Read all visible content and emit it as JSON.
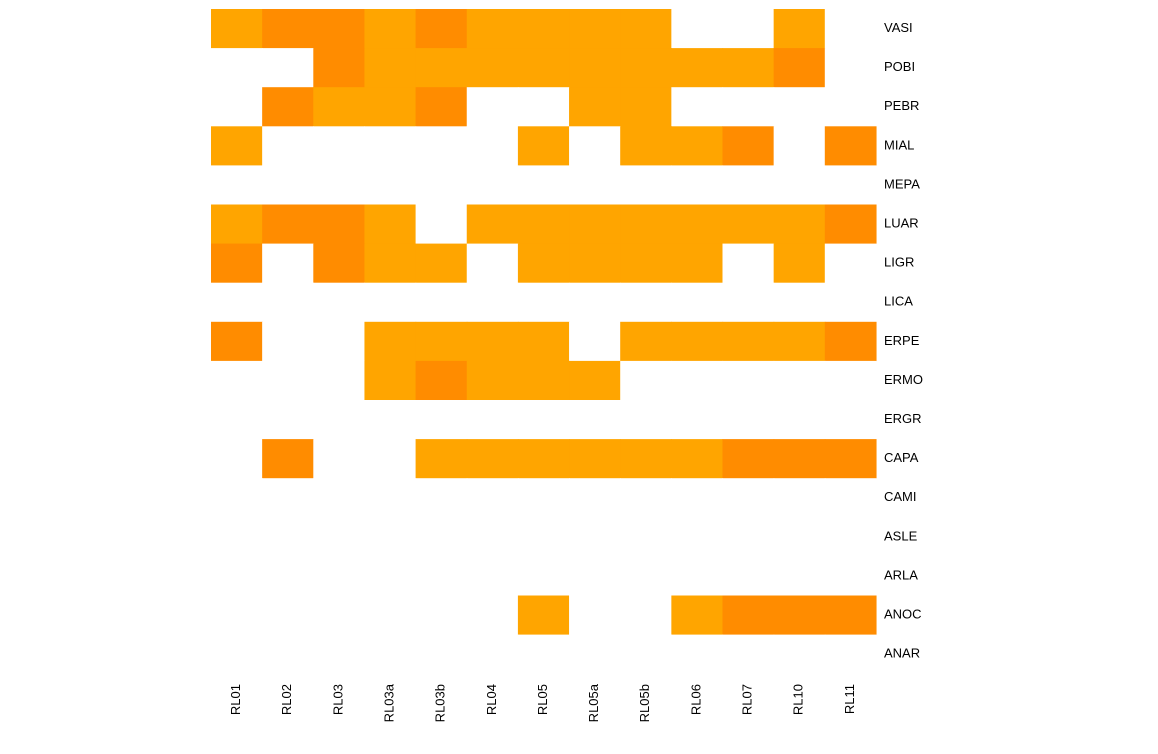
{
  "chart_data": {
    "type": "heatmap",
    "columns": [
      "RL01",
      "RL02",
      "RL03",
      "RL03a",
      "RL03b",
      "RL04",
      "RL05",
      "RL05a",
      "RL05b",
      "RL06",
      "RL07",
      "RL10",
      "RL11"
    ],
    "rows": [
      "VASI",
      "POBI",
      "PEBR",
      "MIAL",
      "MEPA",
      "LUAR",
      "LIGR",
      "LICA",
      "ERPE",
      "ERMO",
      "ERGR",
      "CAPA",
      "CAMI",
      "ASLE",
      "ARLA",
      "ANOC",
      "ANAR"
    ],
    "levels": {
      "0": "absent",
      "1": "low",
      "2": "high"
    },
    "colors": {
      "0": "#ffffff",
      "1": "#ffa500",
      "2": "#ff8c00"
    },
    "values": [
      [
        1,
        2,
        2,
        1,
        2,
        1,
        1,
        1,
        1,
        0,
        0,
        1,
        0
      ],
      [
        0,
        0,
        2,
        1,
        1,
        1,
        1,
        1,
        1,
        1,
        1,
        2,
        0
      ],
      [
        0,
        2,
        1,
        1,
        2,
        0,
        0,
        1,
        1,
        0,
        0,
        0,
        0
      ],
      [
        1,
        0,
        0,
        0,
        0,
        0,
        1,
        0,
        1,
        1,
        2,
        0,
        2
      ],
      [
        0,
        0,
        0,
        0,
        0,
        0,
        0,
        0,
        0,
        0,
        0,
        0,
        0
      ],
      [
        1,
        2,
        2,
        1,
        0,
        1,
        1,
        1,
        1,
        1,
        1,
        1,
        2
      ],
      [
        2,
        0,
        2,
        1,
        1,
        0,
        1,
        1,
        1,
        1,
        0,
        1,
        0
      ],
      [
        0,
        0,
        0,
        0,
        0,
        0,
        0,
        0,
        0,
        0,
        0,
        0,
        0
      ],
      [
        2,
        0,
        0,
        1,
        1,
        1,
        1,
        0,
        1,
        1,
        1,
        1,
        2
      ],
      [
        0,
        0,
        0,
        1,
        2,
        1,
        1,
        1,
        0,
        0,
        0,
        0,
        0
      ],
      [
        0,
        0,
        0,
        0,
        0,
        0,
        0,
        0,
        0,
        0,
        0,
        0,
        0
      ],
      [
        0,
        2,
        0,
        0,
        1,
        1,
        1,
        1,
        1,
        1,
        2,
        2,
        2
      ],
      [
        0,
        0,
        0,
        0,
        0,
        0,
        0,
        0,
        0,
        0,
        0,
        0,
        0
      ],
      [
        0,
        0,
        0,
        0,
        0,
        0,
        0,
        0,
        0,
        0,
        0,
        0,
        0
      ],
      [
        0,
        0,
        0,
        0,
        0,
        0,
        0,
        0,
        0,
        0,
        0,
        0,
        0
      ],
      [
        0,
        0,
        0,
        0,
        0,
        0,
        1,
        0,
        0,
        1,
        2,
        2,
        2
      ],
      [
        0,
        0,
        0,
        0,
        0,
        0,
        0,
        0,
        0,
        0,
        0,
        0,
        0
      ]
    ],
    "title": "",
    "xlabel": "",
    "ylabel": "",
    "legend": "none",
    "grid": false
  }
}
